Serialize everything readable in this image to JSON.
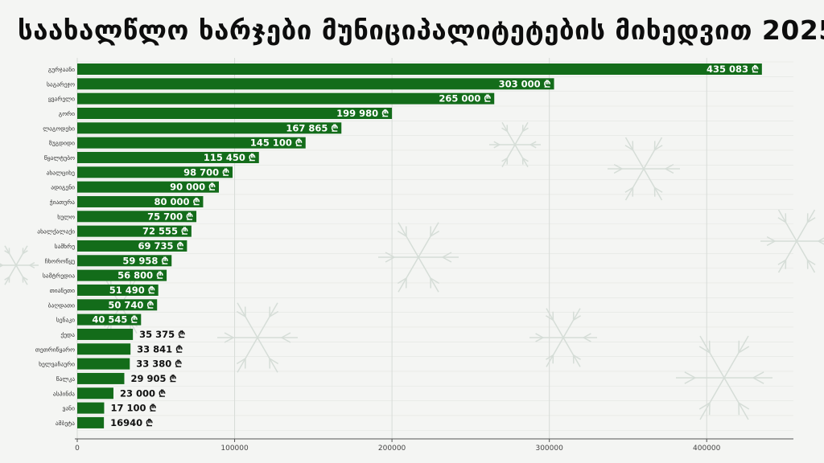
{
  "title": "საახალწლო ხარჯები მუნიციპალიტეტების მიხედვით 2025",
  "colors": {
    "bar": "#136c1a",
    "bar_label_inside": "#ffffff",
    "bar_label_outside": "#111111",
    "grid": "#d7dbd7",
    "background": "#f4f5f3",
    "decor": "#c9d3cc"
  },
  "chart_data": {
    "type": "bar",
    "orientation": "horizontal",
    "categories": [
      "გურჯაანი",
      "საგარეჯო",
      "ყვარელი",
      "გორი",
      "ლაგოდეხი",
      "ზუგდიდი",
      "წყალტუბო",
      "ახალციხე",
      "ადიგენი",
      "ჭიათურა",
      "ხულო",
      "ახალქალაქი",
      "სამხრე",
      "ჩხოროწყუ",
      "სამტრედია",
      "თიანეთი",
      "ბაღდათი",
      "სენაკი",
      "ქედა",
      "თეთრიწყარო",
      "ხელვაჩაური",
      "წალკა",
      "ასპინძა",
      "ვანი",
      "ამბეტა"
    ],
    "values": [
      435083,
      303000,
      265000,
      199980,
      167865,
      145100,
      115450,
      98700,
      90000,
      80000,
      75700,
      72555,
      69735,
      59958,
      56800,
      51490,
      50740,
      40545,
      35375,
      33841,
      33380,
      29905,
      23000,
      17100,
      16940
    ],
    "data_labels": [
      "435 083 ₾",
      "303 000 ₾",
      "265 000 ₾",
      "199 980 ₾",
      "167 865 ₾",
      "145 100 ₾",
      "115 450 ₾",
      "98 700 ₾",
      "90 000 ₾",
      "80 000 ₾",
      "75 700 ₾",
      "72 555 ₾",
      "69 735 ₾",
      "59 958 ₾",
      "56 800 ₾",
      "51 490 ₾",
      "50 740 ₾",
      "40 545 ₾",
      "35 375 ₾",
      "33 841 ₾",
      "33 380 ₾",
      "29 905 ₾",
      "23 000 ₾",
      "17 100 ₾",
      "16940 ₾"
    ],
    "label_inside_count": 18,
    "x_ticks": [
      0,
      100000,
      200000,
      300000,
      400000
    ],
    "xlim": [
      0,
      455000
    ],
    "xlabel": "",
    "ylabel": "",
    "grid": true
  }
}
